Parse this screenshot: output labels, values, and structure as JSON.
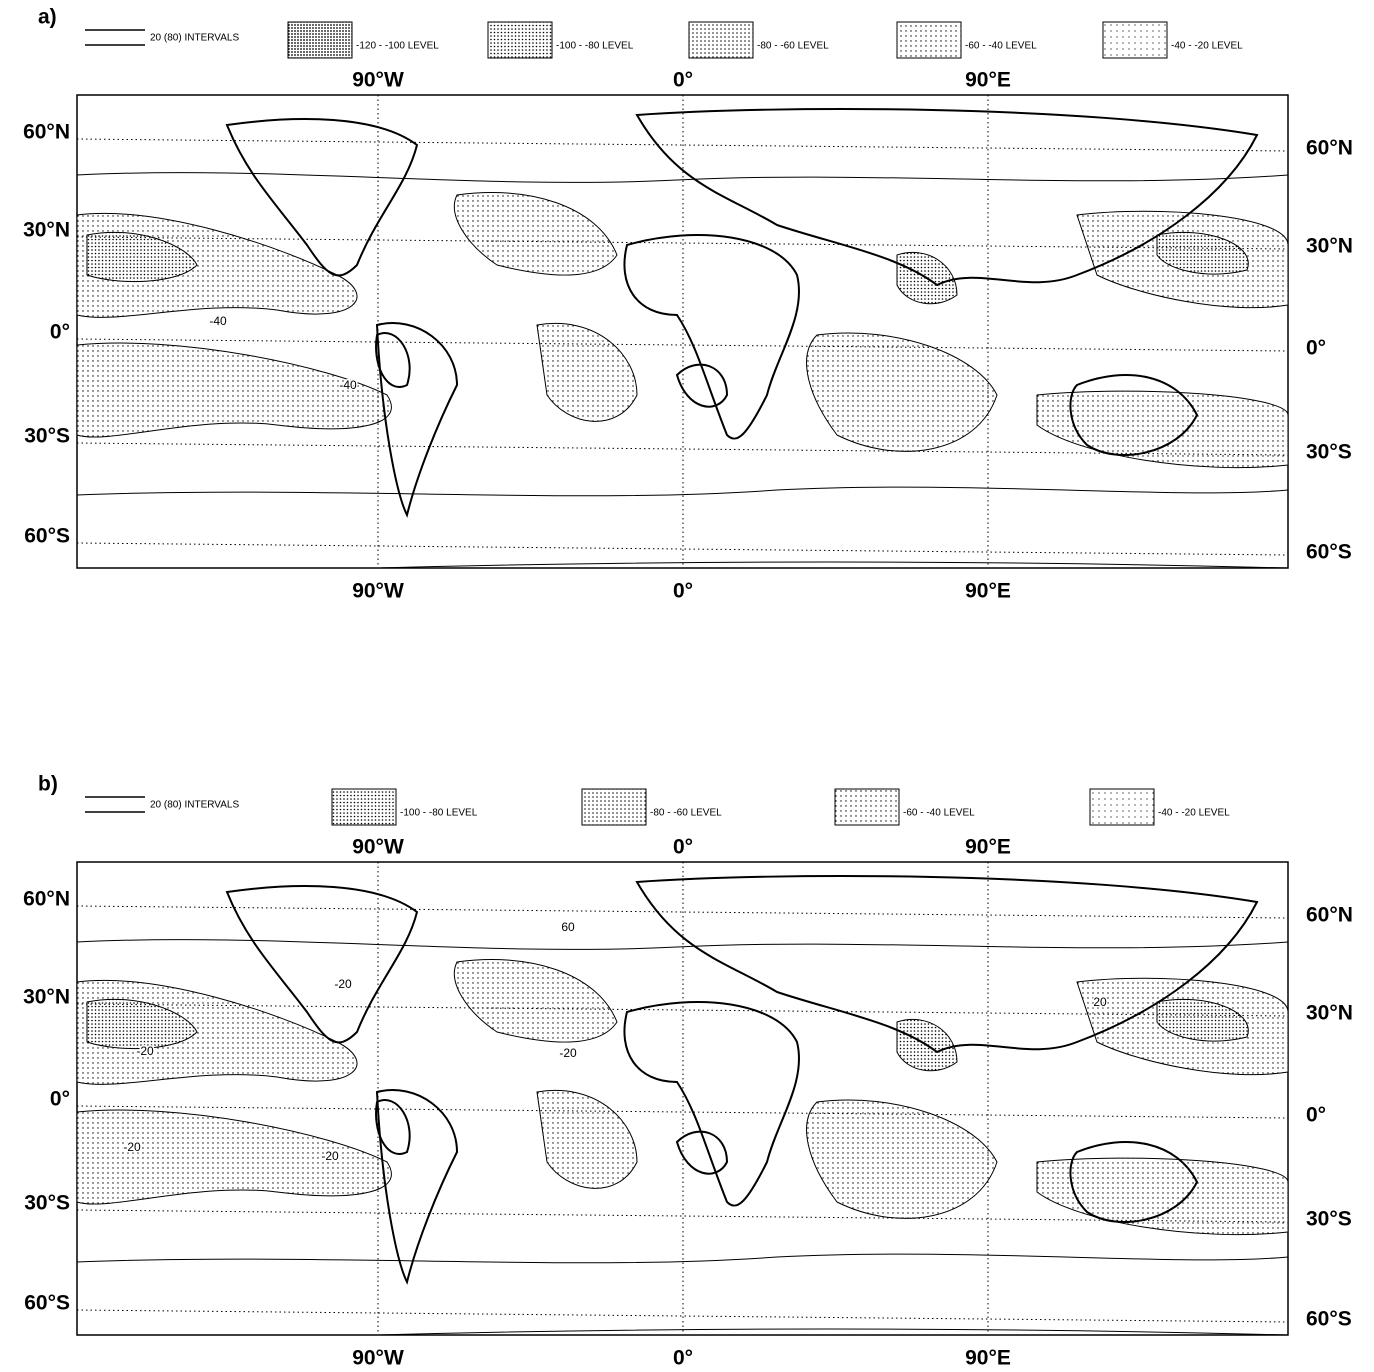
{
  "panels": [
    {
      "label": "a)",
      "legend": {
        "line": "20 (80) INTERVALS",
        "levels": [
          "-120 - -100 LEVEL",
          "-100 - -80 LEVEL",
          "-80 - -60 LEVEL",
          "-60 - -40 LEVEL",
          "-40 - -20 LEVEL"
        ]
      },
      "lon_labels_top": [
        "90°W",
        "0°",
        "90°E"
      ],
      "lon_labels_bottom": [
        "90°W",
        "0°",
        "90°E"
      ],
      "lat_labels_left": [
        "60°N",
        "30°N",
        "0°",
        "30°S",
        "60°S"
      ],
      "lat_labels_right": [
        "60°N",
        "30°N",
        "0°",
        "30°S",
        "60°S"
      ],
      "contour_labels": [
        "-40",
        "-40"
      ]
    },
    {
      "label": "b)",
      "legend": {
        "line": "20 (80) INTERVALS",
        "levels": [
          "-100 - -80 LEVEL",
          "-80 - -60 LEVEL",
          "-60 - -40 LEVEL",
          "-40 - -20 LEVEL"
        ]
      },
      "lon_labels_top": [
        "90°W",
        "0°",
        "90°E"
      ],
      "lon_labels_bottom": [
        "90°W",
        "0°",
        "90°E"
      ],
      "lat_labels_left": [
        "60°N",
        "30°N",
        "0°",
        "30°S",
        "60°S"
      ],
      "lat_labels_right": [
        "60°N",
        "30°N",
        "0°",
        "30°S",
        "60°S"
      ],
      "contour_labels": [
        "60",
        "-20",
        "-20",
        "-20",
        "-20",
        "-20",
        "20"
      ]
    }
  ]
}
